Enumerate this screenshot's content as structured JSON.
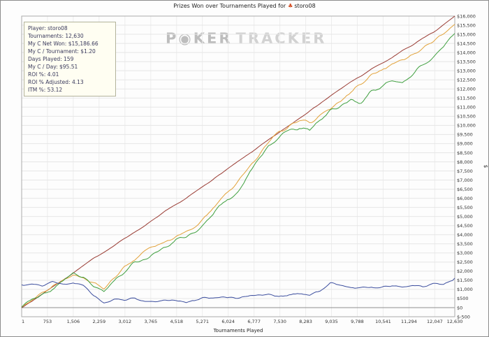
{
  "header": {
    "title_prefix": "Prizes Won over Tournaments Played for",
    "player": "storo08",
    "icon_glyph": "♣"
  },
  "watermark": {
    "part1": "P◉KER",
    "part2": "TRACKER"
  },
  "stats": {
    "rows": [
      "Player: storo08",
      "Tournaments: 12,630",
      "My C Net Won: $15,186.66",
      "My C / Tournament: $1.20",
      "Days Played: 159",
      "My C / Day: $95.51",
      "ROI %: 4.01",
      "ROI % Adjusted: 4.13",
      "ITM %: 53.12"
    ]
  },
  "chart_data": {
    "type": "line",
    "title": "Prizes Won over Tournaments Played for storo08",
    "xlabel": "Tournaments Played",
    "ylabel": "$",
    "grid": true,
    "legend": "none",
    "y_axis_position": "right",
    "xlim": [
      1,
      12630
    ],
    "ylim": [
      -500,
      16000
    ],
    "y_tick_step": 500,
    "x_ticks": [
      1,
      753,
      1506,
      2259,
      3012,
      3765,
      4518,
      5271,
      6024,
      6777,
      7530,
      8283,
      9035,
      9788,
      10541,
      11294,
      12047,
      12630
    ],
    "x_tick_labels": [
      "1",
      "753",
      "1,506",
      "2,259",
      "3,012",
      "3,765",
      "4,518",
      "5,271",
      "6,024",
      "6,777",
      "7,530",
      "8,283",
      "9,035",
      "9,788",
      "10,541",
      "11,294",
      "12,047",
      "12,630"
    ],
    "x": [
      1,
      300,
      600,
      900,
      1200,
      1500,
      1800,
      2100,
      2400,
      2700,
      3000,
      3300,
      3600,
      3900,
      4200,
      4500,
      4800,
      5100,
      5400,
      5700,
      6000,
      6300,
      6600,
      6900,
      7200,
      7500,
      7800,
      8100,
      8400,
      8700,
      9000,
      9300,
      9600,
      9900,
      10200,
      10500,
      10800,
      11100,
      11400,
      11700,
      12000,
      12300,
      12630
    ],
    "series": [
      {
        "name": "series-red",
        "color": "#993b33",
        "jitter": 35,
        "y": [
          0,
          350,
          750,
          1150,
          1500,
          1900,
          2300,
          2700,
          3050,
          3400,
          3800,
          4150,
          4500,
          4900,
          5300,
          5650,
          6000,
          6400,
          6800,
          7200,
          7600,
          8000,
          8400,
          8800,
          9200,
          9600,
          10000,
          10400,
          10800,
          11200,
          11600,
          12000,
          12400,
          12700,
          13100,
          13400,
          13700,
          14100,
          14400,
          14800,
          15100,
          15500,
          16000
        ]
      },
      {
        "name": "series-orange",
        "color": "#e2a23a",
        "jitter": 180,
        "y": [
          50,
          450,
          800,
          1150,
          1500,
          1750,
          1600,
          1350,
          1050,
          1600,
          2300,
          2700,
          3100,
          3350,
          3650,
          3950,
          4150,
          4550,
          5050,
          5650,
          6300,
          6950,
          7600,
          8300,
          9000,
          9700,
          9950,
          10250,
          10150,
          10500,
          10850,
          11350,
          11900,
          12300,
          12800,
          13000,
          13300,
          13600,
          13900,
          14250,
          14650,
          15050,
          15550
        ]
      },
      {
        "name": "series-green",
        "color": "#3f9f3f",
        "jitter": 220,
        "y": [
          20,
          380,
          700,
          1000,
          1400,
          1900,
          1750,
          1250,
          900,
          1450,
          2050,
          2450,
          2750,
          2950,
          3250,
          3650,
          3850,
          4250,
          4750,
          5350,
          5950,
          6450,
          7250,
          8050,
          8850,
          9350,
          9650,
          9950,
          9750,
          10250,
          10850,
          11050,
          11450,
          11250,
          11850,
          12150,
          12450,
          12350,
          12850,
          13350,
          13850,
          14350,
          15050
        ]
      },
      {
        "name": "series-blue",
        "color": "#3c4e9e",
        "jitter": 140,
        "y": [
          1250,
          1320,
          1220,
          1380,
          1280,
          1350,
          1150,
          700,
          280,
          380,
          430,
          520,
          360,
          300,
          420,
          350,
          300,
          460,
          520,
          620,
          520,
          560,
          620,
          720,
          660,
          600,
          720,
          780,
          720,
          950,
          1320,
          1230,
          1120,
          1020,
          1120,
          1060,
          1170,
          1120,
          1230,
          1170,
          1280,
          1330,
          1620
        ]
      }
    ]
  }
}
